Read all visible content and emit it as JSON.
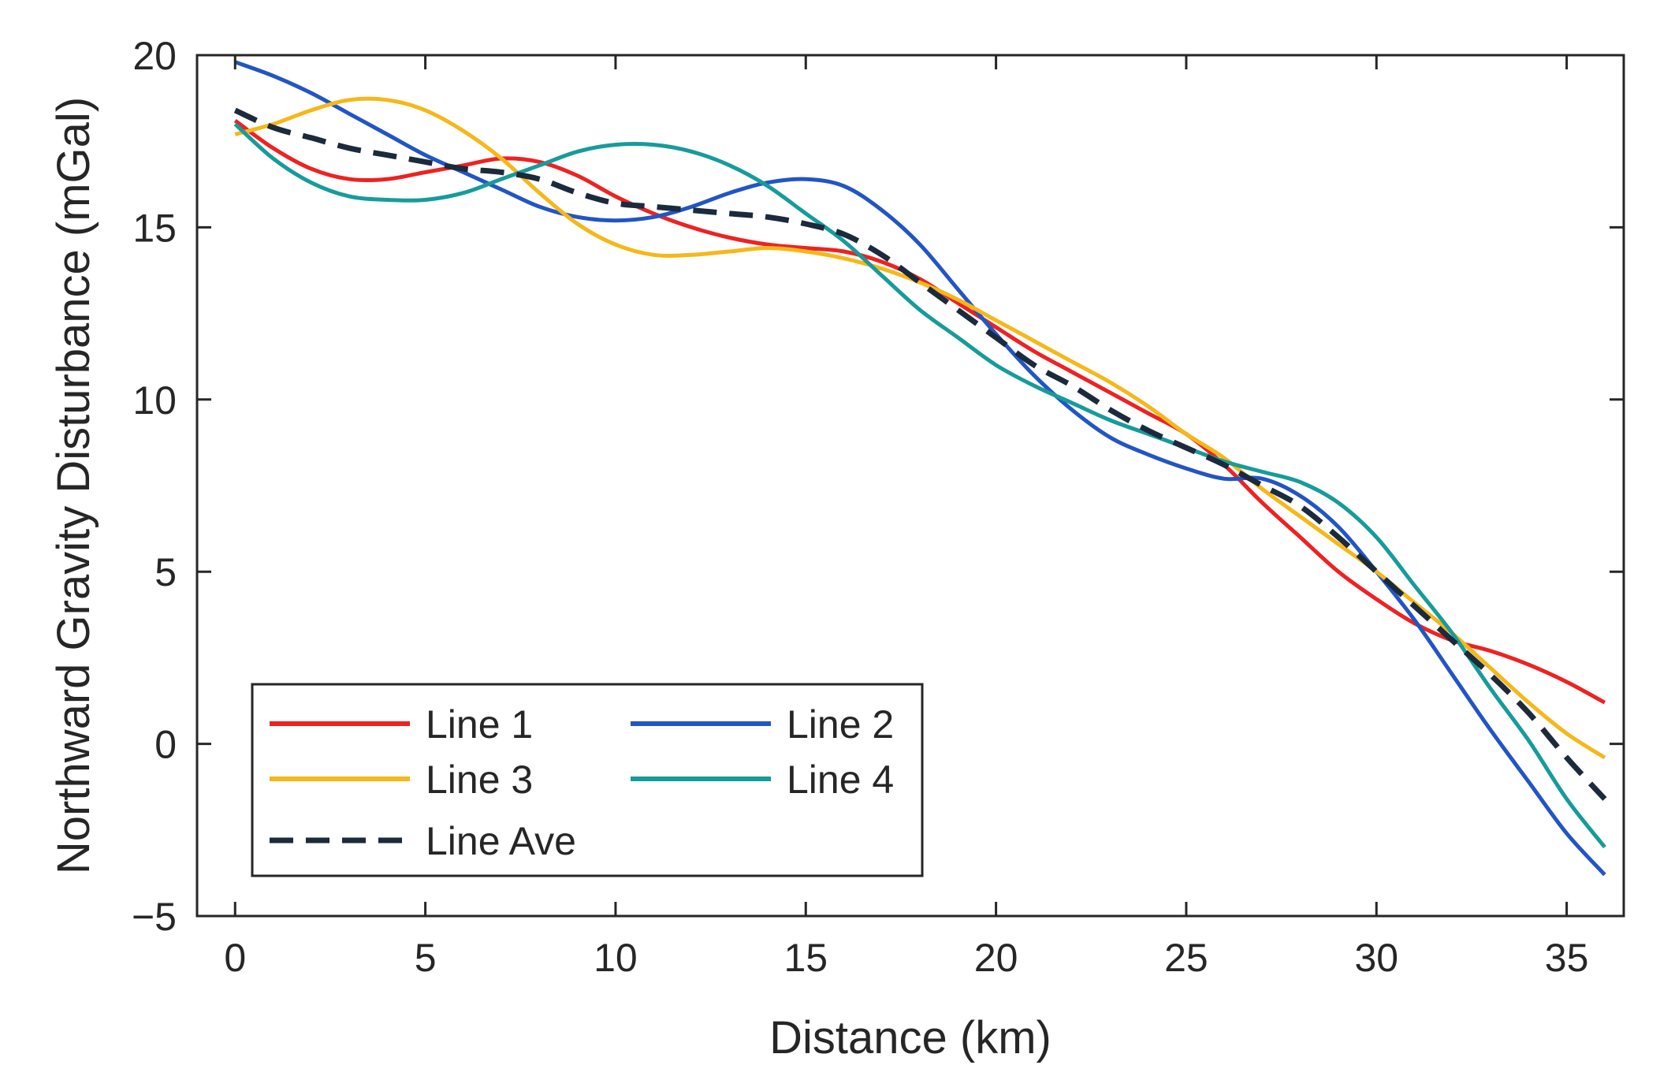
{
  "chart_data": {
    "type": "line",
    "title": "",
    "xlabel": "Distance (km)",
    "ylabel": "Northward Gravity Disturbance (mGal)",
    "xlim": [
      -1,
      36.5
    ],
    "ylim": [
      -5,
      20
    ],
    "xticks": [
      0,
      5,
      10,
      15,
      20,
      25,
      30,
      35
    ],
    "yticks": [
      -5,
      0,
      5,
      10,
      15,
      20
    ],
    "grid": false,
    "legend_position": "bottom-left",
    "x": [
      0,
      1,
      2,
      3,
      4,
      5,
      6,
      7,
      8,
      9,
      10,
      11,
      12,
      13,
      14,
      15,
      16,
      17,
      18,
      19,
      20,
      21,
      22,
      23,
      24,
      25,
      26,
      27,
      28,
      29,
      30,
      31,
      32,
      33,
      34,
      35,
      36
    ],
    "series": [
      {
        "name": "Line 1",
        "color": "#ee2222",
        "dash": "solid",
        "values": [
          18.1,
          17.3,
          16.7,
          16.4,
          16.4,
          16.6,
          16.8,
          17.0,
          16.9,
          16.5,
          15.9,
          15.4,
          15.0,
          14.7,
          14.5,
          14.4,
          14.3,
          14.0,
          13.5,
          12.8,
          12.1,
          11.4,
          10.8,
          10.2,
          9.6,
          9.0,
          8.1,
          7.0,
          6.0,
          5.0,
          4.2,
          3.5,
          3.0,
          2.7,
          2.3,
          1.8,
          1.2
        ]
      },
      {
        "name": "Line 2",
        "color": "#2255c4",
        "dash": "solid",
        "values": [
          19.8,
          19.4,
          18.9,
          18.3,
          17.7,
          17.1,
          16.6,
          16.1,
          15.6,
          15.3,
          15.2,
          15.3,
          15.6,
          16.0,
          16.3,
          16.4,
          16.2,
          15.5,
          14.5,
          13.2,
          11.9,
          10.7,
          9.7,
          8.9,
          8.4,
          8.0,
          7.7,
          7.7,
          7.2,
          6.3,
          5.0,
          3.6,
          2.0,
          0.4,
          -1.1,
          -2.6,
          -3.8
        ]
      },
      {
        "name": "Line 3",
        "color": "#f5b81a",
        "dash": "solid",
        "values": [
          17.7,
          18.0,
          18.4,
          18.7,
          18.7,
          18.4,
          17.8,
          17.0,
          16.0,
          15.1,
          14.5,
          14.2,
          14.2,
          14.3,
          14.4,
          14.3,
          14.1,
          13.8,
          13.4,
          12.9,
          12.3,
          11.7,
          11.1,
          10.5,
          9.8,
          9.0,
          8.3,
          7.4,
          6.6,
          5.8,
          5.0,
          4.1,
          3.2,
          2.2,
          1.2,
          0.3,
          -0.4
        ]
      },
      {
        "name": "Line 4",
        "color": "#179b9b",
        "dash": "solid",
        "values": [
          18.0,
          17.0,
          16.3,
          15.9,
          15.8,
          15.8,
          16.0,
          16.4,
          16.8,
          17.2,
          17.4,
          17.4,
          17.2,
          16.8,
          16.2,
          15.4,
          14.6,
          13.6,
          12.6,
          11.8,
          11.0,
          10.4,
          9.9,
          9.4,
          9.0,
          8.6,
          8.2,
          7.9,
          7.6,
          7.0,
          6.0,
          4.6,
          3.2,
          1.6,
          0.1,
          -1.6,
          -3.0
        ]
      },
      {
        "name": "Line Ave",
        "color": "#1b2a3c",
        "dash": "dashed",
        "values": [
          18.4,
          17.9,
          17.6,
          17.3,
          17.1,
          16.9,
          16.7,
          16.6,
          16.4,
          16.0,
          15.7,
          15.6,
          15.5,
          15.4,
          15.3,
          15.1,
          14.8,
          14.2,
          13.4,
          12.6,
          11.8,
          11.0,
          10.4,
          9.7,
          9.1,
          8.6,
          8.1,
          7.5,
          6.9,
          6.0,
          5.0,
          4.0,
          3.0,
          2.0,
          0.9,
          -0.4,
          -1.6
        ]
      }
    ]
  }
}
